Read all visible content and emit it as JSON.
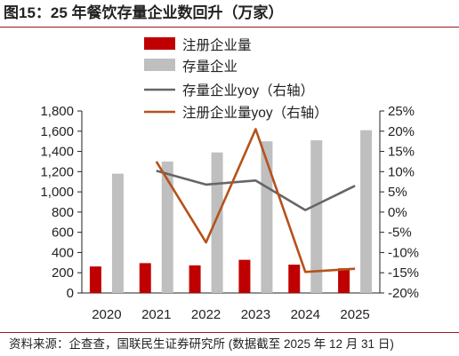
{
  "title": "图15：25 年餐饮存量企业数回升（万家）",
  "source": "资料来源：企查查，国联民生证券研究所 (数据截至 2025 年 12 月 31 日)",
  "colors": {
    "new": "#c00000",
    "stock": "#bfbfbf",
    "stock_yoy": "#666666",
    "new_yoy": "#b5521b"
  },
  "chart_data": {
    "type": "bar",
    "categories": [
      "2020",
      "2021",
      "2022",
      "2023",
      "2024",
      "2025"
    ],
    "series": [
      {
        "name": "注册企业量",
        "kind": "bar",
        "axis": "left",
        "values": [
          262,
          295,
          273,
          328,
          280,
          244
        ]
      },
      {
        "name": "存量企业",
        "kind": "bar",
        "axis": "left",
        "values": [
          1180,
          1300,
          1390,
          1500,
          1510,
          1610
        ]
      },
      {
        "name": "存量企业yoy（右轴）",
        "kind": "line",
        "axis": "right",
        "values": [
          null,
          10.2,
          6.8,
          7.8,
          0.5,
          6.5
        ]
      },
      {
        "name": "注册企业量yoy（右轴）",
        "kind": "line",
        "axis": "right",
        "values": [
          null,
          12.5,
          -7.5,
          20.5,
          -14.8,
          -14.0
        ]
      }
    ],
    "y_left": {
      "min": 0,
      "max": 1800,
      "ticks": [
        "0",
        "200",
        "400",
        "600",
        "800",
        "1,000",
        "1,200",
        "1,400",
        "1,600",
        "1,800"
      ]
    },
    "y_right": {
      "min": -20,
      "max": 25,
      "ticks": [
        "-20%",
        "-15%",
        "-10%",
        "-5%",
        "0%",
        "5%",
        "10%",
        "15%",
        "20%",
        "25%"
      ]
    },
    "grid": false,
    "legend": "top-center"
  }
}
